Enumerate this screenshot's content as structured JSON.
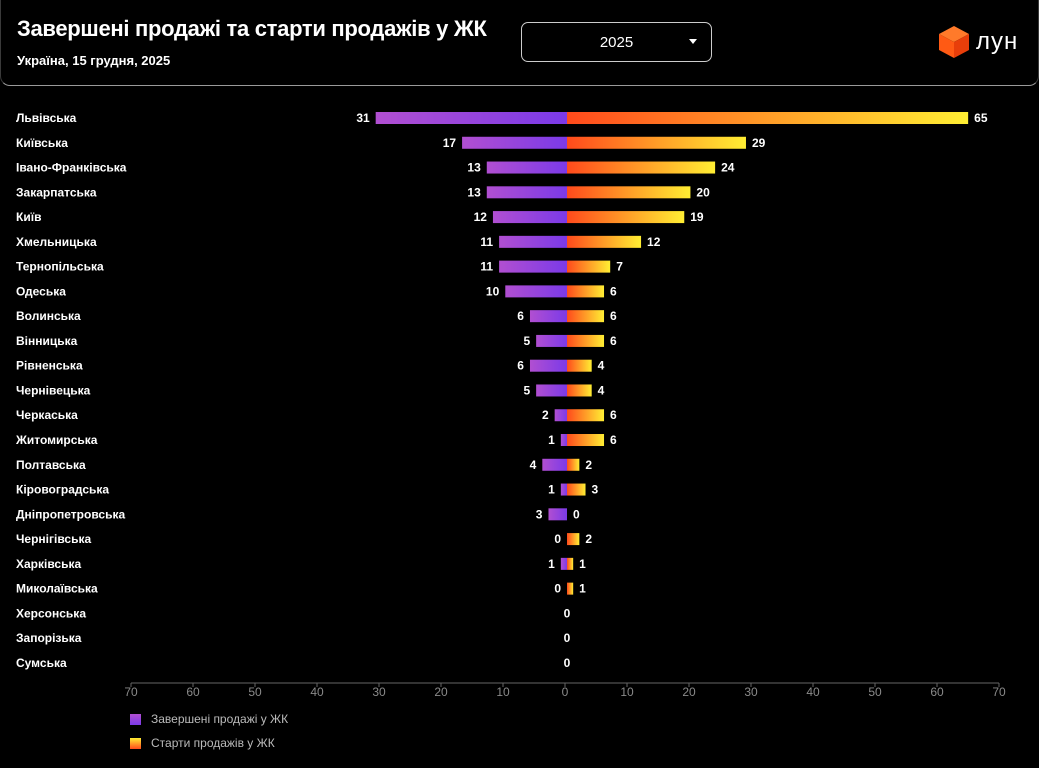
{
  "header": {
    "title": "Завершені продажі та старти продажів у ЖК",
    "subtitle": "Україна, 15 грудня, 2025",
    "year_select": "2025",
    "logo_text": "лун"
  },
  "colors": {
    "completed": [
      "#b14fd1",
      "#7b3ae8"
    ],
    "starts": [
      "#ff4a1c",
      "#ffee33"
    ]
  },
  "chart_data": {
    "type": "bar",
    "orientation": "horizontal-diverging",
    "categories": [
      "Львівська",
      "Київська",
      "Івано-Франківська",
      "Закарпатська",
      "Київ",
      "Хмельницька",
      "Тернопільська",
      "Одеська",
      "Волинська",
      "Вінницька",
      "Рівненська",
      "Чернівецька",
      "Черкаська",
      "Житомирська",
      "Полтавська",
      "Кіровоградська",
      "Дніпропетровська",
      "Чернігівська",
      "Харківська",
      "Миколаївська",
      "Херсонська",
      "Запорізька",
      "Сумська"
    ],
    "series": [
      {
        "name": "Завершені продажі у ЖК",
        "side": "left",
        "values": [
          31,
          17,
          13,
          13,
          12,
          11,
          11,
          10,
          6,
          5,
          6,
          5,
          2,
          1,
          4,
          1,
          3,
          0,
          1,
          0,
          0,
          0,
          0
        ]
      },
      {
        "name": "Старти продажів у ЖК",
        "side": "right",
        "values": [
          65,
          29,
          24,
          20,
          19,
          12,
          7,
          6,
          6,
          6,
          4,
          4,
          6,
          6,
          2,
          3,
          0,
          2,
          1,
          1,
          0,
          0,
          0
        ]
      }
    ],
    "xlim": [
      -70,
      70
    ],
    "xticks": [
      "70",
      "60",
      "50",
      "40",
      "30",
      "20",
      "10",
      "0",
      "10",
      "20",
      "30",
      "40",
      "50",
      "60",
      "70"
    ],
    "grid": false,
    "legend": "bottom-left"
  }
}
